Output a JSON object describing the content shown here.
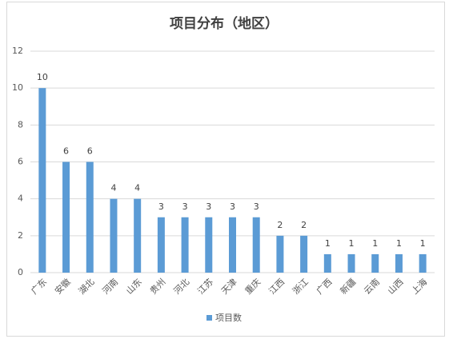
{
  "chart_data": {
    "type": "bar",
    "title": "项目分布（地区）",
    "categories": [
      "广东",
      "安徽",
      "湖北",
      "河南",
      "山东",
      "贵州",
      "河北",
      "江苏",
      "天津",
      "重庆",
      "江西",
      "浙江",
      "广西",
      "新疆",
      "云南",
      "山西",
      "上海"
    ],
    "series": [
      {
        "name": "项目数",
        "color": "#5b9bd5",
        "values": [
          10,
          6,
          6,
          4,
          4,
          3,
          3,
          3,
          3,
          3,
          2,
          2,
          1,
          1,
          1,
          1,
          1
        ]
      }
    ],
    "ylim": [
      0,
      12
    ],
    "yticks": [
      0,
      2,
      4,
      6,
      8,
      10,
      12
    ],
    "grid": true,
    "legend": "bottom"
  }
}
